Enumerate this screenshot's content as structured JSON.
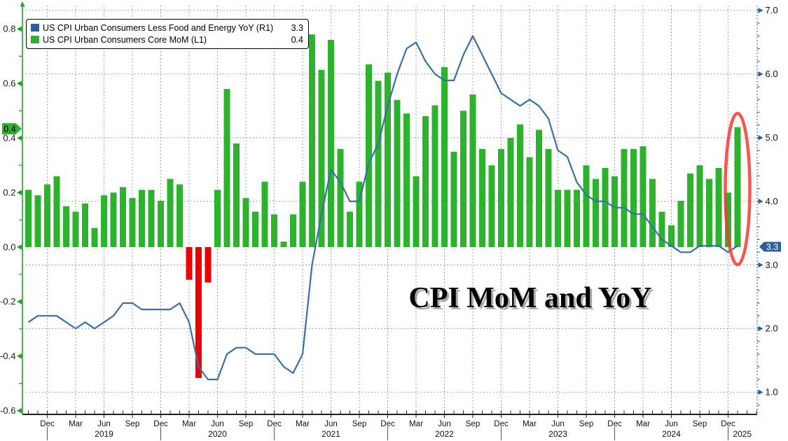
{
  "title": "CPI MoM and YoY",
  "legend": {
    "items": [
      {
        "label": "US CPI Urban Consumers Less Food and Energy YoY (R1)",
        "value": "3.3",
        "color": "#2b5f9b"
      },
      {
        "label": "US CPI Urban Consumers Core MoM (L1)",
        "value": "0.4",
        "color": "#2db22d"
      }
    ]
  },
  "badges": {
    "left": {
      "text": "0.4",
      "color": "#2db22d"
    },
    "right": {
      "text": "3.3",
      "color": "#2b5f9b"
    }
  },
  "chart_data": {
    "type": "bar+line",
    "x_start_month": "2018-10",
    "x_end_month": "2025-01",
    "months_count": 76,
    "series": [
      {
        "name": "US CPI Urban Consumers Core MoM (L1)",
        "type": "bar",
        "axis": "left",
        "color_positive": "#2db22d",
        "color_negative": "#ee0000",
        "values": [
          0.21,
          0.19,
          0.23,
          0.26,
          0.15,
          0.13,
          0.16,
          0.07,
          0.19,
          0.2,
          0.22,
          0.18,
          0.21,
          0.21,
          0.17,
          0.25,
          0.23,
          -0.12,
          -0.48,
          -0.13,
          0.21,
          0.58,
          0.38,
          0.18,
          0.13,
          0.24,
          0.12,
          0.02,
          0.12,
          0.24,
          0.78,
          0.65,
          0.76,
          0.36,
          0.13,
          0.24,
          0.67,
          0.61,
          0.64,
          0.54,
          0.49,
          0.26,
          0.48,
          0.52,
          0.66,
          0.35,
          0.5,
          0.56,
          0.36,
          0.3,
          0.36,
          0.4,
          0.45,
          0.33,
          0.43,
          0.36,
          0.21,
          0.21,
          0.21,
          0.3,
          0.25,
          0.29,
          0.26,
          0.36,
          0.36,
          0.37,
          0.25,
          0.13,
          0.08,
          0.17,
          0.27,
          0.3,
          0.25,
          0.29,
          0.2,
          0.44
        ]
      },
      {
        "name": "US CPI Urban Consumers Less Food and Energy YoY (R1)",
        "type": "line",
        "axis": "right",
        "color": "#3a6fa5",
        "values": [
          2.1,
          2.2,
          2.2,
          2.2,
          2.1,
          2.0,
          2.1,
          2.0,
          2.1,
          2.2,
          2.4,
          2.4,
          2.3,
          2.3,
          2.3,
          2.3,
          2.4,
          2.1,
          1.4,
          1.2,
          1.2,
          1.6,
          1.7,
          1.7,
          1.6,
          1.6,
          1.6,
          1.4,
          1.3,
          1.6,
          3.0,
          3.8,
          4.5,
          4.3,
          4.0,
          4.0,
          4.6,
          4.9,
          5.5,
          6.0,
          6.4,
          6.5,
          6.2,
          6.0,
          5.9,
          5.9,
          6.3,
          6.6,
          6.3,
          6.0,
          5.7,
          5.6,
          5.5,
          5.6,
          5.5,
          5.3,
          4.8,
          4.7,
          4.3,
          4.1,
          4.0,
          4.0,
          3.9,
          3.9,
          3.8,
          3.8,
          3.6,
          3.4,
          3.3,
          3.2,
          3.2,
          3.3,
          3.3,
          3.3,
          3.2,
          3.3
        ]
      }
    ],
    "left_axis": {
      "range": [
        -0.61,
        0.89
      ],
      "ticks": [
        {
          "v": 0.8,
          "label": "0.8"
        },
        {
          "v": 0.6,
          "label": "0.6"
        },
        {
          "v": 0.4,
          "label": "0.4"
        },
        {
          "v": 0.2,
          "label": "0.2"
        },
        {
          "v": 0.0,
          "label": "0.0"
        },
        {
          "v": -0.2,
          "label": "-0.2"
        },
        {
          "v": -0.4,
          "label": "-0.4"
        },
        {
          "v": -0.6,
          "label": "-0.6"
        }
      ]
    },
    "right_axis": {
      "range": [
        0.65,
        7.08
      ],
      "ticks": [
        {
          "v": 7,
          "label": "7.0"
        },
        {
          "v": 6,
          "label": "6.0"
        },
        {
          "v": 5,
          "label": "5.0"
        },
        {
          "v": 4,
          "label": "4.0"
        },
        {
          "v": 3,
          "label": "3.0"
        },
        {
          "v": 2,
          "label": "2.0"
        },
        {
          "v": 1,
          "label": "1.0"
        }
      ]
    },
    "x_axis": {
      "month_tick_labels": [
        "Dec",
        "Mar",
        "Jun",
        "Sep",
        "Dec",
        "Mar",
        "Jun",
        "Sep",
        "Dec",
        "Mar",
        "Jun",
        "Sep",
        "Dec",
        "Mar",
        "Jun",
        "Sep",
        "Dec",
        "Mar",
        "Jun",
        "Sep",
        "Dec",
        "Mar",
        "Jun",
        "Sep",
        "Dec"
      ],
      "year_labels": [
        "2019",
        "2020",
        "2021",
        "2022",
        "2023",
        "2024",
        "2025"
      ]
    },
    "grid": {
      "horizontal": "right-axis integers, dotted",
      "vertical": "quarterly, dotted"
    },
    "annotation": {
      "shape": "ellipse",
      "color": "#f43b30",
      "highlights_month": "2025-01"
    }
  }
}
